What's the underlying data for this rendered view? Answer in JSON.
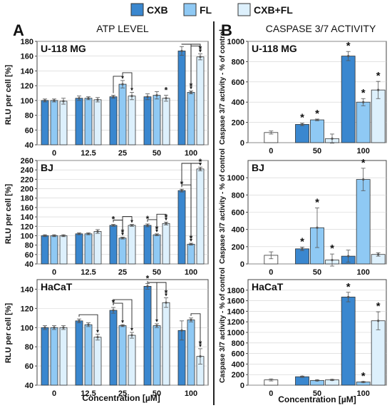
{
  "colors": {
    "cxb": "#3a87cf",
    "fl": "#8fc9f4",
    "cxbfl": "#ddf0fc",
    "control": "#ffffff",
    "stroke": "#333333"
  },
  "legend": {
    "items": [
      {
        "key": "cxb",
        "label": "CXB"
      },
      {
        "key": "fl",
        "label": "FL"
      },
      {
        "key": "cxbfl",
        "label": "CXB+FL"
      }
    ]
  },
  "figure": {
    "panel_a_letter": "A",
    "panel_a_title": "ATP LEVEL",
    "panel_b_letter": "B",
    "panel_b_title": "CASPASE 3/7 ACTIVITY",
    "xlabel": "Concentration [µM]",
    "ylabel_a": "RLU per cell [%]",
    "ylabel_b": "Caspase 3/7 activity - % of control",
    "star": "*"
  },
  "chart_data": [
    {
      "type": "bar",
      "panel": "A",
      "title": "U-118 MG",
      "categories": [
        "0",
        "12.5",
        "25",
        "50",
        "100"
      ],
      "ylim": [
        40,
        180
      ],
      "yticks": [
        40,
        60,
        80,
        100,
        120,
        140,
        160,
        180
      ],
      "series": [
        {
          "name": "CXB",
          "values": [
            100,
            103,
            105,
            105,
            167
          ],
          "errors": [
            2,
            3,
            2,
            4,
            6
          ]
        },
        {
          "name": "FL",
          "values": [
            100,
            103,
            122,
            107,
            111
          ],
          "errors": [
            2,
            2,
            5,
            5,
            2
          ]
        },
        {
          "name": "CXB+FL",
          "values": [
            99,
            101,
            106,
            103,
            159
          ],
          "errors": [
            4,
            3,
            5,
            4,
            4
          ]
        }
      ],
      "significant": [
        [
          3,
          2
        ],
        [
          4,
          1
        ],
        [
          4,
          2
        ]
      ],
      "brackets": [
        [
          2,
          0,
          1
        ],
        [
          2,
          1,
          2
        ],
        [
          4,
          0,
          1
        ],
        [
          4,
          1,
          2
        ],
        [
          4,
          0,
          2
        ]
      ]
    },
    {
      "type": "bar",
      "panel": "A",
      "title": "BJ",
      "categories": [
        "0",
        "12.5",
        "25",
        "50",
        "100"
      ],
      "ylim": [
        40,
        260
      ],
      "yticks": [
        40,
        60,
        80,
        100,
        120,
        140,
        160,
        180,
        200,
        220,
        240,
        260
      ],
      "series": [
        {
          "name": "CXB",
          "values": [
            100,
            104,
            122,
            122,
            196
          ],
          "errors": [
            2,
            2,
            2,
            3,
            3
          ]
        },
        {
          "name": "FL",
          "values": [
            100,
            104,
            95,
            102,
            82
          ],
          "errors": [
            2,
            2,
            2,
            2,
            2
          ]
        },
        {
          "name": "CXB+FL",
          "values": [
            100,
            109,
            122,
            126,
            242
          ],
          "errors": [
            2,
            4,
            2,
            3,
            4
          ]
        }
      ],
      "significant": [
        [
          2,
          0
        ],
        [
          2,
          1
        ],
        [
          3,
          0
        ],
        [
          3,
          1
        ],
        [
          3,
          2
        ],
        [
          4,
          0
        ],
        [
          4,
          1
        ],
        [
          4,
          2
        ]
      ],
      "brackets": [
        [
          2,
          0,
          1
        ],
        [
          2,
          1,
          2
        ],
        [
          3,
          0,
          1
        ],
        [
          3,
          1,
          2
        ],
        [
          4,
          0,
          1
        ],
        [
          4,
          1,
          2
        ],
        [
          4,
          0,
          2
        ]
      ]
    },
    {
      "type": "bar",
      "panel": "A",
      "title": "HaCaT",
      "categories": [
        "0",
        "12.5",
        "25",
        "50",
        "100"
      ],
      "ylim": [
        40,
        150
      ],
      "yticks": [
        40,
        60,
        80,
        100,
        120,
        140
      ],
      "series": [
        {
          "name": "CXB",
          "values": [
            100,
            107,
            118,
            143,
            97
          ],
          "errors": [
            2,
            2,
            3,
            3,
            10
          ]
        },
        {
          "name": "FL",
          "values": [
            100,
            103,
            102,
            102,
            108
          ],
          "errors": [
            2,
            2,
            1,
            2,
            2
          ]
        },
        {
          "name": "CXB+FL",
          "values": [
            100,
            90,
            92,
            126,
            70
          ],
          "errors": [
            2,
            3,
            3,
            5,
            8
          ]
        }
      ],
      "significant": [
        [
          2,
          0
        ],
        [
          3,
          0
        ],
        [
          3,
          2
        ],
        [
          4,
          2
        ]
      ],
      "brackets": [
        [
          1,
          0,
          2
        ],
        [
          2,
          0,
          1
        ],
        [
          2,
          0,
          2
        ],
        [
          3,
          0,
          1
        ],
        [
          3,
          0,
          2
        ],
        [
          4,
          1,
          2
        ]
      ]
    },
    {
      "type": "bar",
      "panel": "B",
      "title": "U-118 MG",
      "categories": [
        "0",
        "50",
        "100"
      ],
      "ylim": [
        0,
        1000
      ],
      "yticks": [
        0,
        200,
        400,
        600,
        800,
        1000
      ],
      "control": {
        "value": 100,
        "error": 15
      },
      "series": [
        {
          "name": "CXB",
          "values": [
            null,
            180,
            855
          ],
          "errors": [
            null,
            12,
            45
          ]
        },
        {
          "name": "FL",
          "values": [
            null,
            225,
            400
          ],
          "errors": [
            null,
            8,
            35
          ]
        },
        {
          "name": "CXB+FL",
          "values": [
            null,
            40,
            520
          ],
          "errors": [
            null,
            45,
            85
          ]
        }
      ],
      "significant": [
        [
          1,
          0
        ],
        [
          1,
          1
        ],
        [
          2,
          0
        ],
        [
          2,
          1
        ],
        [
          2,
          2
        ]
      ]
    },
    {
      "type": "bar",
      "panel": "B",
      "title": "BJ",
      "categories": [
        "0",
        "50",
        "100"
      ],
      "ylim": [
        0,
        1200
      ],
      "yticks": [
        0,
        200,
        400,
        600,
        800,
        1000
      ],
      "control": {
        "value": 100,
        "error": 40
      },
      "series": [
        {
          "name": "CXB",
          "values": [
            null,
            175,
            90
          ],
          "errors": [
            null,
            20,
            70
          ]
        },
        {
          "name": "FL",
          "values": [
            null,
            420,
            980
          ],
          "errors": [
            null,
            230,
            130
          ]
        },
        {
          "name": "CXB+FL",
          "values": [
            null,
            45,
            110
          ],
          "errors": [
            null,
            70,
            20
          ]
        }
      ],
      "significant": [
        [
          1,
          0
        ],
        [
          1,
          1
        ],
        [
          1,
          2
        ],
        [
          2,
          1
        ]
      ]
    },
    {
      "type": "bar",
      "panel": "B",
      "title": "HaCaT",
      "categories": [
        "0",
        "50",
        "100"
      ],
      "ylim": [
        0,
        2000
      ],
      "yticks": [
        0,
        200,
        400,
        600,
        800,
        1000,
        1200,
        1400,
        1600,
        1800
      ],
      "control": {
        "value": 100,
        "error": 20
      },
      "series": [
        {
          "name": "CXB",
          "values": [
            null,
            160,
            1670
          ],
          "errors": [
            null,
            12,
            90
          ]
        },
        {
          "name": "FL",
          "values": [
            null,
            90,
            60
          ],
          "errors": [
            null,
            10,
            10
          ]
        },
        {
          "name": "CXB+FL",
          "values": [
            null,
            100,
            1220
          ],
          "errors": [
            null,
            10,
            170
          ]
        }
      ],
      "significant": [
        [
          2,
          0
        ],
        [
          2,
          1
        ],
        [
          2,
          2
        ]
      ]
    }
  ]
}
